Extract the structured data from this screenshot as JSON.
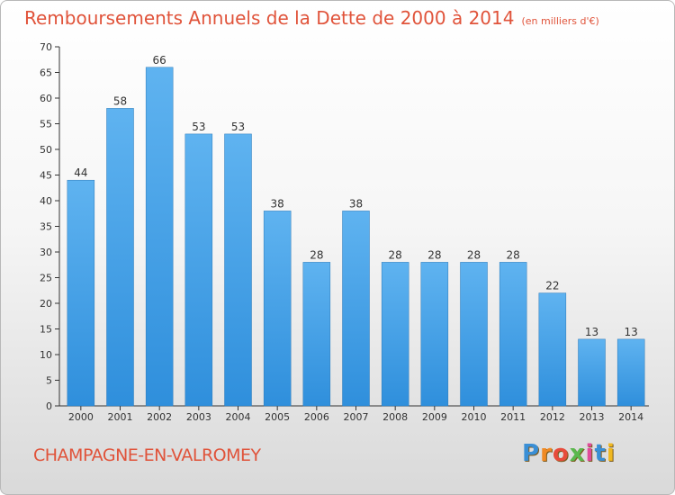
{
  "header": {
    "title": "Remboursements Annuels de la Dette de 2000 à 2014",
    "subtitle": "(en milliers d'€)"
  },
  "footer": {
    "commune": "CHAMPAGNE-EN-VALROMEY",
    "logo_text": "Proxiti"
  },
  "colors": {
    "bar": "#2f8fdc",
    "bar_light": "#5fb3f0",
    "title": "#e0533a",
    "axis": "#333333"
  },
  "chart_data": {
    "type": "bar",
    "categories": [
      "2000",
      "2001",
      "2002",
      "2003",
      "2004",
      "2005",
      "2006",
      "2007",
      "2008",
      "2009",
      "2010",
      "2011",
      "2012",
      "2013",
      "2014"
    ],
    "values": [
      44,
      58,
      66,
      53,
      53,
      38,
      28,
      38,
      28,
      28,
      28,
      28,
      22,
      13,
      13
    ],
    "title": "Remboursements Annuels de la Dette de 2000 à 2014",
    "subtitle": "(en milliers d'€)",
    "xlabel": "",
    "ylabel": "",
    "ylim": [
      0,
      70
    ],
    "yticks": [
      0,
      5,
      10,
      15,
      20,
      25,
      30,
      35,
      40,
      45,
      50,
      55,
      60,
      65,
      70
    ],
    "data_labels": true,
    "grid": false,
    "legend": "none"
  }
}
